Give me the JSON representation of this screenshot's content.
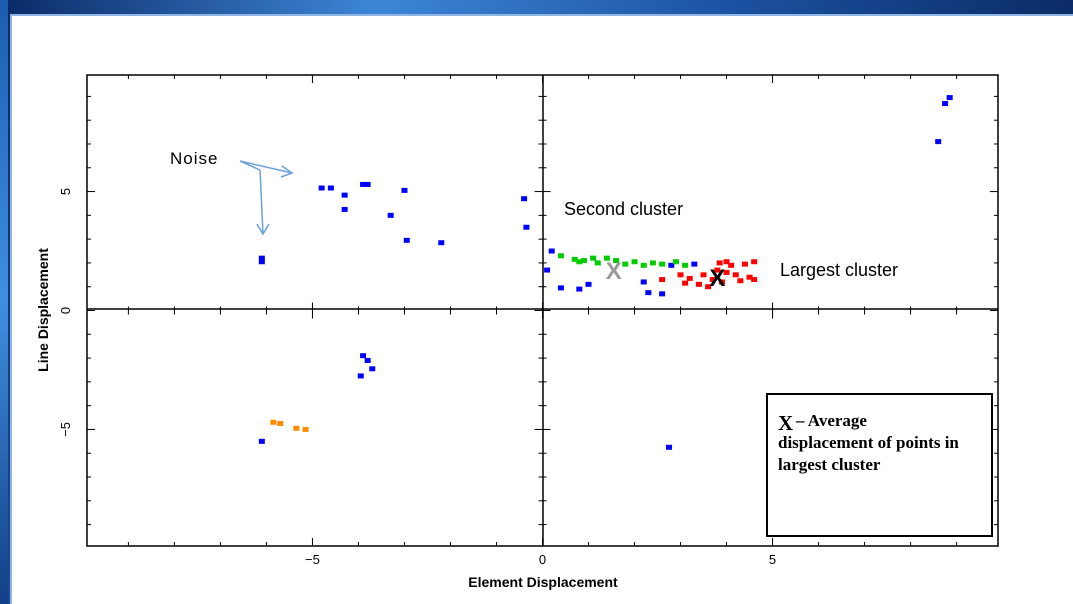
{
  "chart_data": {
    "type": "scatter",
    "xlabel": "Element Displacement",
    "ylabel": "Line Displacement",
    "xlim": [
      -9.9,
      9.9
    ],
    "ylim": [
      -9.9,
      9.9
    ],
    "x_ticks": [
      -5,
      0,
      5
    ],
    "y_ticks": [
      -5,
      0,
      5
    ],
    "grid": false,
    "series": [
      {
        "color": "#0000ff",
        "points": [
          [
            -6.1,
            2.2
          ],
          [
            -6.1,
            2.05
          ],
          [
            -4.8,
            5.15
          ],
          [
            -4.6,
            5.15
          ],
          [
            -4.3,
            4.85
          ],
          [
            -4.3,
            4.25
          ],
          [
            -3.9,
            5.3
          ],
          [
            -3.8,
            5.3
          ],
          [
            -3.3,
            4.0
          ],
          [
            -3.0,
            5.05
          ],
          [
            -2.95,
            2.95
          ],
          [
            -2.2,
            2.85
          ],
          [
            -0.4,
            4.7
          ],
          [
            -0.35,
            3.5
          ],
          [
            0.2,
            2.5
          ],
          [
            0.1,
            1.7
          ],
          [
            0.4,
            0.95
          ],
          [
            0.8,
            0.9
          ],
          [
            1.0,
            1.1
          ],
          [
            2.2,
            1.2
          ],
          [
            2.3,
            0.75
          ],
          [
            2.6,
            0.7
          ],
          [
            2.8,
            1.9
          ],
          [
            3.3,
            1.95
          ],
          [
            8.6,
            7.1
          ],
          [
            8.75,
            8.7
          ],
          [
            8.85,
            8.95
          ],
          [
            -3.9,
            -1.9
          ],
          [
            -3.8,
            -2.1
          ],
          [
            -3.7,
            -2.45
          ],
          [
            -3.95,
            -2.75
          ],
          [
            -6.1,
            -5.5
          ],
          [
            2.75,
            -5.75
          ]
        ]
      },
      {
        "color": "#00cc00",
        "points": [
          [
            0.4,
            2.3
          ],
          [
            0.7,
            2.15
          ],
          [
            0.8,
            2.05
          ],
          [
            0.9,
            2.1
          ],
          [
            1.1,
            2.2
          ],
          [
            1.2,
            2.0
          ],
          [
            1.4,
            2.2
          ],
          [
            1.6,
            2.1
          ],
          [
            1.8,
            1.95
          ],
          [
            2.0,
            2.05
          ],
          [
            2.2,
            1.9
          ],
          [
            2.4,
            2.0
          ],
          [
            2.6,
            1.95
          ],
          [
            2.9,
            2.05
          ],
          [
            3.1,
            1.9
          ]
        ]
      },
      {
        "color": "#ff0000",
        "points": [
          [
            2.6,
            1.3
          ],
          [
            3.0,
            1.5
          ],
          [
            3.2,
            1.35
          ],
          [
            3.5,
            1.5
          ],
          [
            3.6,
            1.0
          ],
          [
            3.7,
            1.3
          ],
          [
            3.8,
            1.7
          ],
          [
            3.85,
            2.0
          ],
          [
            3.9,
            1.2
          ],
          [
            4.0,
            1.6
          ],
          [
            4.1,
            1.9
          ],
          [
            4.2,
            1.5
          ],
          [
            4.3,
            1.25
          ],
          [
            4.4,
            1.95
          ],
          [
            4.5,
            1.4
          ],
          [
            4.6,
            2.05
          ],
          [
            4.6,
            1.3
          ],
          [
            3.4,
            1.1
          ],
          [
            3.1,
            1.15
          ],
          [
            4.0,
            2.05
          ]
        ]
      },
      {
        "color": "#ff8c00",
        "points": [
          [
            -5.85,
            -4.7
          ],
          [
            -5.7,
            -4.75
          ],
          [
            -5.35,
            -4.95
          ],
          [
            -5.15,
            -5.0
          ]
        ]
      }
    ],
    "markers": [
      {
        "label": "X",
        "x": 1.55,
        "y": 1.7,
        "color": "#999999"
      },
      {
        "label": "X",
        "x": 3.8,
        "y": 1.4,
        "color": "#000000"
      }
    ],
    "annotations": {
      "noise": "Noise",
      "second_cluster": "Second cluster",
      "largest_cluster": "Largest cluster",
      "legend_box_symbol": "X",
      "legend_box_text": "– Average displacement of points in largest cluster"
    },
    "colors": {
      "second_cluster": "#33dd33",
      "largest_cluster": "#ff2020",
      "noise": "#000000"
    }
  }
}
